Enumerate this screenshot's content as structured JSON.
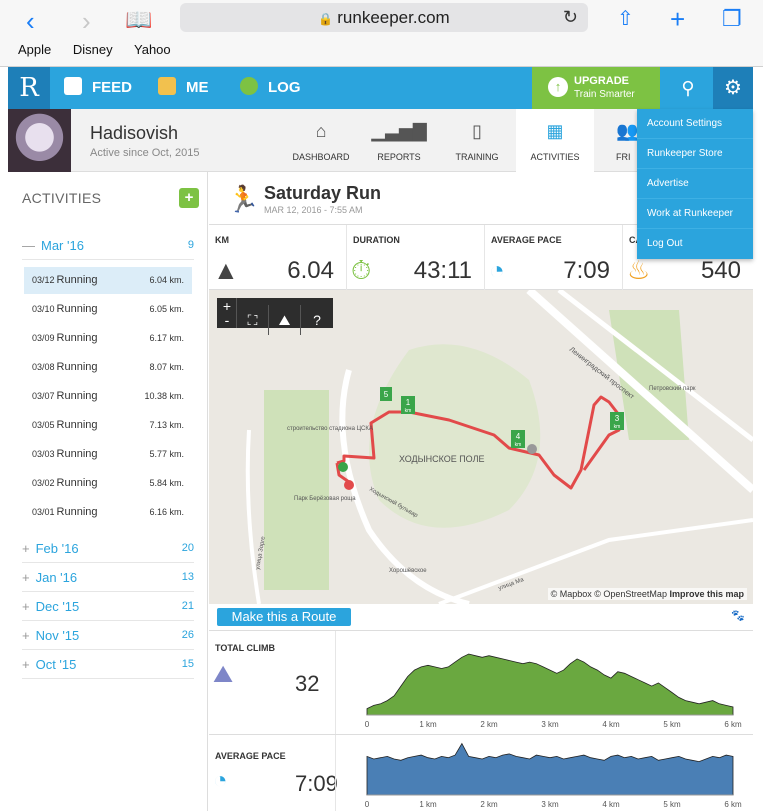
{
  "browser": {
    "url": "runkeeper.com",
    "bookmarks": [
      "Apple",
      "Disney",
      "Yahoo"
    ]
  },
  "nav": {
    "items": [
      "FEED",
      "ME",
      "LOG"
    ],
    "upgrade_title": "UPGRADE",
    "upgrade_sub": "Train Smarter"
  },
  "dropdown": [
    "Account Settings",
    "Runkeeper Store",
    "Advertise",
    "Work at Runkeeper",
    "Log Out"
  ],
  "profile": {
    "name": "Hadisovish",
    "since": "Active since Oct, 2015",
    "tabs": [
      "DASHBOARD",
      "REPORTS",
      "TRAINING",
      "ACTIVITIES",
      "FRI"
    ]
  },
  "sidebar": {
    "title": "ACTIVITIES",
    "current_month": {
      "label": "Mar '16",
      "count": "9"
    },
    "activities": [
      {
        "date": "03/12",
        "type": "Running",
        "km": "6.04 km."
      },
      {
        "date": "03/10",
        "type": "Running",
        "km": "6.05 km."
      },
      {
        "date": "03/09",
        "type": "Running",
        "km": "6.17 km."
      },
      {
        "date": "03/08",
        "type": "Running",
        "km": "8.07 km."
      },
      {
        "date": "03/07",
        "type": "Running",
        "km": "10.38 km."
      },
      {
        "date": "03/05",
        "type": "Running",
        "km": "7.13 km."
      },
      {
        "date": "03/03",
        "type": "Running",
        "km": "5.77 km."
      },
      {
        "date": "03/02",
        "type": "Running",
        "km": "5.84 km."
      },
      {
        "date": "03/01",
        "type": "Running",
        "km": "6.16 km."
      }
    ],
    "months": [
      {
        "label": "Feb '16",
        "count": "20"
      },
      {
        "label": "Jan '16",
        "count": "13"
      },
      {
        "label": "Dec '15",
        "count": "21"
      },
      {
        "label": "Nov '15",
        "count": "26"
      },
      {
        "label": "Oct '15",
        "count": "15"
      }
    ]
  },
  "run": {
    "title": "Saturday Run",
    "date": "MAR 12, 2016  -  7:55 AM",
    "stats": [
      {
        "label": "KM",
        "value": "6.04"
      },
      {
        "label": "DURATION",
        "value": "43:11"
      },
      {
        "label": "AVERAGE PACE",
        "value": "7:09"
      },
      {
        "label": "CA",
        "value": "540"
      }
    ]
  },
  "map": {
    "labels": [
      "ХОДЫНСКОЕ ПОЛЕ",
      "строительство стадиона ЦСКА",
      "Парк Берёзовая роща",
      "Петровский парк",
      "Ленинградский проспект",
      "Ходынский бульвар",
      "улица Зорге",
      "Хорошёвское",
      "улица Ма"
    ],
    "markers": [
      "1",
      "3",
      "4",
      "5"
    ],
    "marker_unit": "km",
    "controls": [
      "+",
      "-",
      "?"
    ],
    "attribution": "© Mapbox © OpenStreetMap",
    "improve": "Improve this map"
  },
  "route_button": "Make this a Route",
  "charts": {
    "climb": {
      "label": "TOTAL CLIMB",
      "value": "32"
    },
    "pace": {
      "label": "AVERAGE PACE",
      "value": "7:09"
    },
    "ticks": [
      "0",
      "1 km",
      "2 km",
      "3 km",
      "4 km",
      "5 km",
      "6 km"
    ],
    "elevation": [
      4,
      6,
      7,
      9,
      12,
      18,
      24,
      28,
      30,
      31,
      30,
      29,
      30,
      33,
      36,
      38,
      37,
      36,
      37,
      36,
      35,
      34,
      33,
      32,
      33,
      32,
      30,
      28,
      26,
      28,
      32,
      35,
      33,
      30,
      28,
      25,
      23,
      27,
      26,
      24,
      22,
      20,
      18,
      20,
      17,
      14,
      11,
      9,
      8,
      7,
      8,
      9,
      7,
      6,
      5
    ],
    "pace_series": [
      30,
      28,
      29,
      30,
      28,
      27,
      29,
      30,
      31,
      29,
      28,
      30,
      29,
      31,
      40,
      30,
      29,
      28,
      30,
      29,
      31,
      32,
      30,
      29,
      28,
      31,
      30,
      29,
      30,
      28,
      29,
      30,
      31,
      29,
      28,
      27,
      30,
      31,
      29,
      30,
      28,
      29,
      30,
      27,
      28,
      29,
      30,
      28,
      27,
      26,
      28,
      30,
      29,
      31,
      30
    ],
    "colors": {
      "elevation": "#6aa840",
      "pace": "#4a7fb5"
    }
  }
}
